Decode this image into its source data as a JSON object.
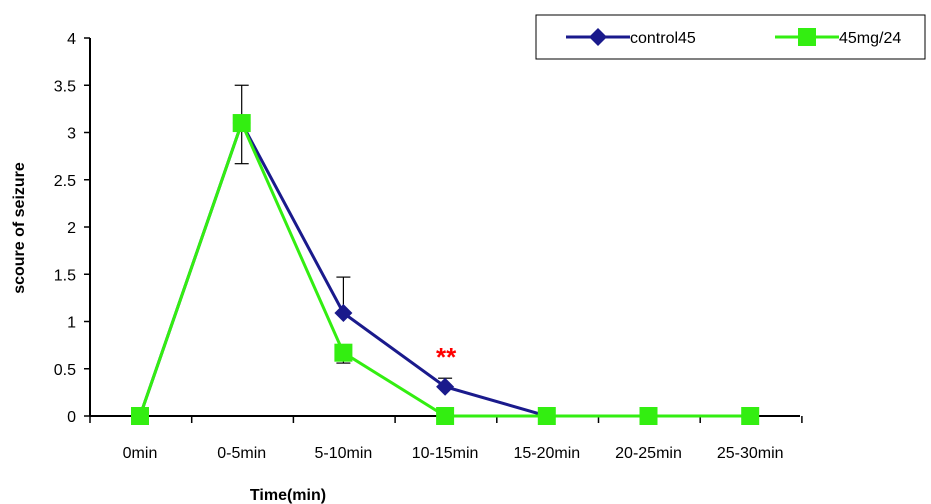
{
  "chart_data": {
    "type": "line",
    "title": "",
    "xlabel": "Time(min)",
    "ylabel": "scoure of seizure",
    "categories": [
      "0min",
      "0-5min",
      "5-10min",
      "10-15min",
      "15-20min",
      "20-25min",
      "25-30min"
    ],
    "ylim": [
      0,
      4
    ],
    "yticks": [
      0,
      0.5,
      1,
      1.5,
      2,
      2.5,
      3,
      3.5,
      4
    ],
    "ytick_labels": [
      "0",
      "0.5",
      "1",
      "1.5",
      "2",
      "2.5",
      "3",
      "3.5",
      "4"
    ],
    "grid": false,
    "legend_position": "top-right",
    "series": [
      {
        "name": "control45",
        "color": "#1a1a8c",
        "marker": "diamond",
        "values": [
          0,
          3.1,
          1.09,
          0.31,
          0,
          0,
          0
        ],
        "error_upper": [
          0,
          3.5,
          1.47,
          0.4,
          0,
          0,
          0
        ]
      },
      {
        "name": "45mg/24",
        "color": "#33ee11",
        "marker": "square",
        "values": [
          0,
          3.1,
          0.67,
          0,
          0,
          0,
          0
        ],
        "error_lower": [
          0,
          2.67,
          0.56,
          0,
          0,
          0,
          0
        ]
      }
    ],
    "annotations": [
      {
        "text": "**",
        "category": "10-15min",
        "y": 0.55,
        "color": "#ff0000"
      }
    ]
  }
}
